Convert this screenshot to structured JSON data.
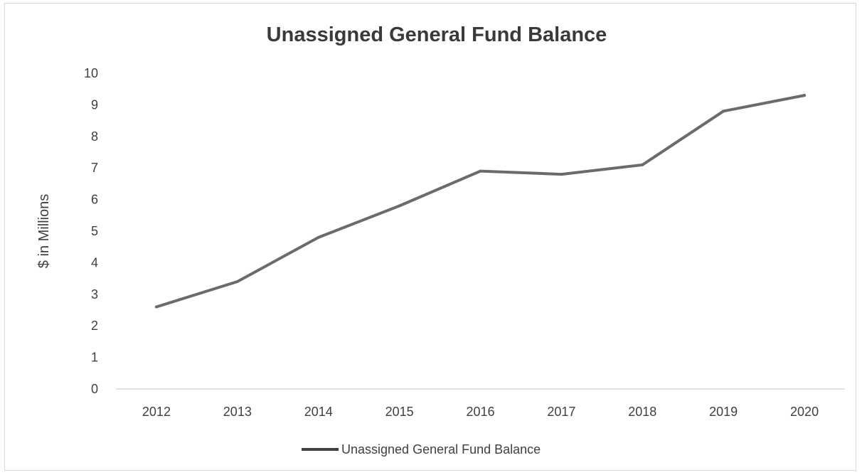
{
  "chart_data": {
    "type": "line",
    "title": "Unassigned General Fund Balance",
    "xlabel": "",
    "ylabel": "$ in Millions",
    "categories": [
      "2012",
      "2013",
      "2014",
      "2015",
      "2016",
      "2017",
      "2018",
      "2019",
      "2020"
    ],
    "yticks": [
      "0",
      "1",
      "2",
      "3",
      "4",
      "5",
      "6",
      "7",
      "8",
      "9",
      "10"
    ],
    "ylim": [
      0,
      10
    ],
    "grid": false,
    "legend_position": "bottom",
    "series": [
      {
        "name": "Unassigned General Fund Balance",
        "values": [
          2.6,
          3.4,
          4.8,
          5.8,
          6.9,
          6.8,
          7.1,
          8.8,
          9.3
        ],
        "color": "#6b6b6b"
      }
    ]
  }
}
